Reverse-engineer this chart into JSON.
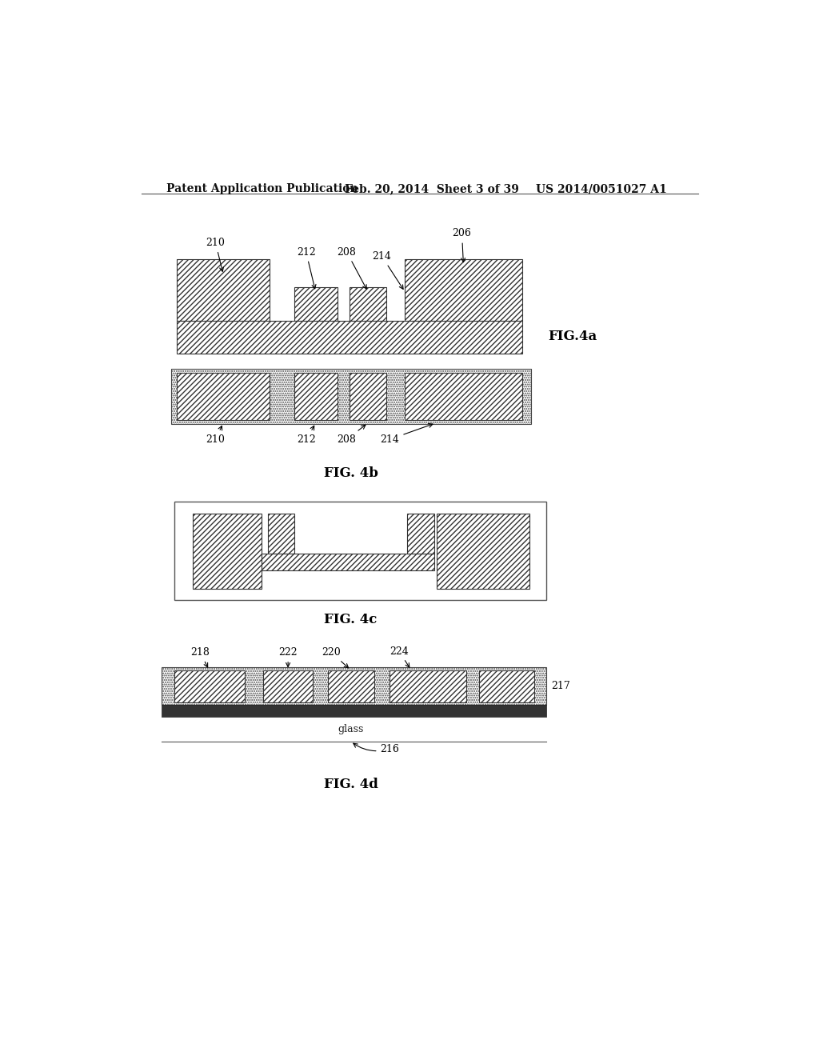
{
  "header_left": "Patent Application Publication",
  "header_mid": "Feb. 20, 2014  Sheet 3 of 39",
  "header_right": "US 2014/0051027 A1",
  "bg_color": "#ffffff",
  "fig4a_label": "FIG.4a",
  "fig4b_label": "FIG. 4b",
  "fig4c_label": "FIG. 4c",
  "fig4d_label": "FIG. 4d"
}
